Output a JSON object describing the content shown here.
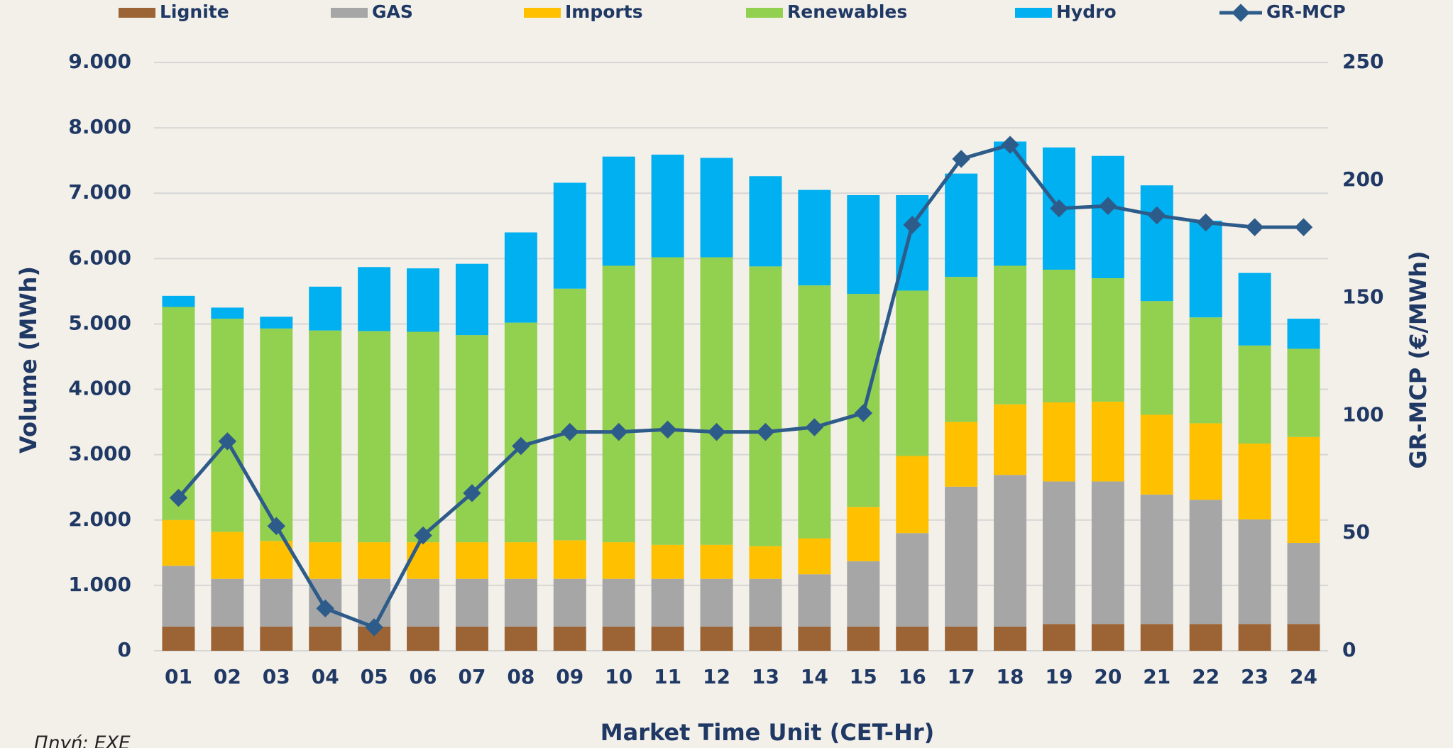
{
  "chart_data": {
    "type": "bar",
    "stacked": true,
    "categories": [
      "01",
      "02",
      "03",
      "04",
      "05",
      "06",
      "07",
      "08",
      "09",
      "10",
      "11",
      "12",
      "13",
      "14",
      "15",
      "16",
      "17",
      "18",
      "19",
      "20",
      "21",
      "22",
      "23",
      "24"
    ],
    "series": [
      {
        "name": "Lignite",
        "color": "#9c6434",
        "values": [
          370,
          370,
          370,
          370,
          370,
          370,
          370,
          370,
          370,
          370,
          370,
          370,
          370,
          370,
          370,
          370,
          370,
          370,
          410,
          410,
          410,
          410,
          410,
          410
        ]
      },
      {
        "name": "GAS",
        "color": "#a6a6a6",
        "values": [
          930,
          730,
          730,
          730,
          730,
          730,
          730,
          730,
          730,
          730,
          730,
          730,
          730,
          800,
          1000,
          1430,
          2140,
          2320,
          2180,
          2180,
          1980,
          1900,
          1600,
          1240
        ]
      },
      {
        "name": "Imports",
        "color": "#ffc000",
        "values": [
          700,
          720,
          580,
          560,
          560,
          560,
          560,
          560,
          590,
          560,
          520,
          520,
          500,
          550,
          830,
          1180,
          990,
          1080,
          1210,
          1220,
          1220,
          1170,
          1160,
          1620
        ]
      },
      {
        "name": "Renewables",
        "color": "#92d050",
        "values": [
          3260,
          3260,
          3250,
          3240,
          3230,
          3220,
          3170,
          3360,
          3850,
          4230,
          4400,
          4400,
          4280,
          3870,
          3260,
          2530,
          2220,
          2120,
          2030,
          1890,
          1740,
          1620,
          1500,
          1350
        ]
      },
      {
        "name": "Hydro",
        "color": "#00b0f0",
        "values": [
          170,
          170,
          180,
          670,
          980,
          970,
          1090,
          1380,
          1620,
          1670,
          1570,
          1520,
          1380,
          1460,
          1510,
          1460,
          1580,
          1900,
          1870,
          1870,
          1770,
          1480,
          1110,
          460
        ]
      },
      {
        "name": "GR-MCP",
        "color": "#2e5c8a",
        "type": "line",
        "axis": "y2",
        "values": [
          65,
          89,
          53,
          18,
          10,
          49,
          67,
          87,
          93,
          93,
          94,
          93,
          93,
          95,
          101,
          181,
          209,
          215,
          188,
          189,
          185,
          182,
          180,
          180
        ]
      }
    ],
    "ylim": [
      0,
      9000
    ],
    "yticks": [
      0,
      {
        "value": 1000,
        "label": "1.000"
      },
      {
        "value": 2000,
        "label": "2.000"
      },
      {
        "value": 3000,
        "label": "3.000"
      },
      {
        "value": 4000,
        "label": "4.000"
      },
      {
        "value": 5000,
        "label": "5.000"
      },
      {
        "value": 6000,
        "label": "6.000"
      },
      {
        "value": 7000,
        "label": "7.000"
      },
      {
        "value": 8000,
        "label": "8.000"
      },
      {
        "value": 9000,
        "label": "9.000"
      }
    ],
    "y2lim": [
      0,
      250
    ],
    "y2ticks": [
      0,
      50,
      100,
      150,
      200,
      250
    ],
    "ylabel": "Volume (MWh)",
    "y2label": "GR-MCP (€/MWh)",
    "xlabel": "Market Time Unit (CET-Hr)",
    "source": "Πηγή: ΕΧΕ",
    "grid": true,
    "legend": "top"
  }
}
